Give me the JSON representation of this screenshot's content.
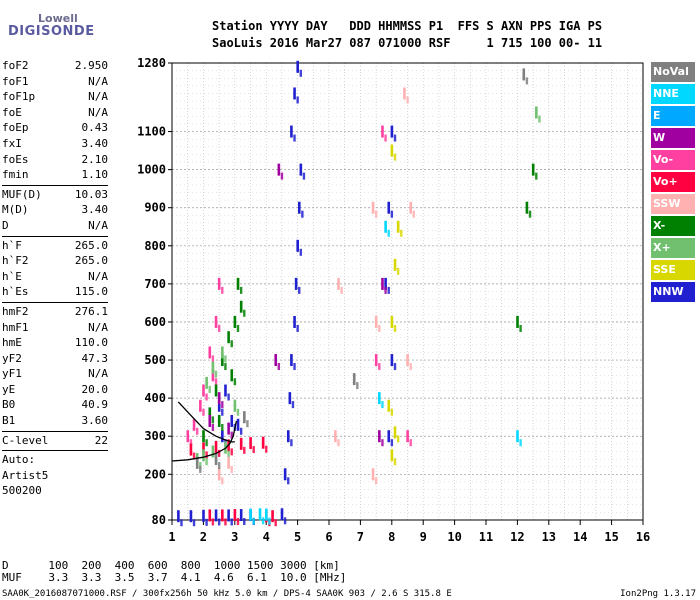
{
  "logo": {
    "line1": "Lowell",
    "line2": "DIGISONDE"
  },
  "header": {
    "line1": "Station YYYY DAY   DDD HHMMSS P1  FFS S AXN PPS IGA PS",
    "line2": "SaoLuis 2016 Mar27 087 071000 RSF     1 715 100 00- 11"
  },
  "params_groups": [
    [
      [
        "foF2",
        "2.950"
      ],
      [
        "foF1",
        "N/A"
      ],
      [
        "foF1p",
        "N/A"
      ],
      [
        "foE",
        "N/A"
      ],
      [
        "foEp",
        "0.43"
      ],
      [
        "fxI",
        "3.40"
      ],
      [
        "foEs",
        "2.10"
      ],
      [
        "fmin",
        "1.10"
      ]
    ],
    [
      [
        "MUF(D)",
        "10.03"
      ],
      [
        "M(D)",
        "3.40"
      ],
      [
        "D",
        "N/A"
      ]
    ],
    [
      [
        "h`F",
        "265.0"
      ],
      [
        "h`F2",
        "265.0"
      ],
      [
        "h`E",
        "N/A"
      ],
      [
        "h`Es",
        "115.0"
      ]
    ],
    [
      [
        "hmF2",
        "276.1"
      ],
      [
        "hmF1",
        "N/A"
      ],
      [
        "hmE",
        "110.0"
      ],
      [
        "yF2",
        "47.3"
      ],
      [
        "yF1",
        "N/A"
      ],
      [
        "yE",
        "20.0"
      ],
      [
        "B0",
        "40.9"
      ],
      [
        "B1",
        "3.60"
      ]
    ],
    [
      [
        "C-level",
        "22"
      ]
    ],
    [
      [
        "Auto:",
        ""
      ],
      [
        "Artist5",
        ""
      ],
      [
        "500200",
        ""
      ]
    ]
  ],
  "legend": [
    {
      "label": "NoVal",
      "color": "#808080"
    },
    {
      "label": "NNE",
      "color": "#00d8ff"
    },
    {
      "label": "E",
      "color": "#00a8ff"
    },
    {
      "label": "W",
      "color": "#a000a0"
    },
    {
      "label": "Vo-",
      "color": "#ff40a0"
    },
    {
      "label": "Vo+",
      "color": "#ff0040"
    },
    {
      "label": "SSW",
      "color": "#ffb0b0"
    },
    {
      "label": "X-",
      "color": "#008000"
    },
    {
      "label": "X+",
      "color": "#70c070"
    },
    {
      "label": "SSE",
      "color": "#d8d800"
    },
    {
      "label": "NNW",
      "color": "#2020d0"
    }
  ],
  "chart_data": {
    "type": "scatter",
    "title": "",
    "xlabel": "",
    "ylabel": "",
    "xlim": [
      1,
      16
    ],
    "ylim": [
      80,
      1280
    ],
    "x_ticks": [
      1,
      2,
      3,
      4,
      5,
      6,
      7,
      8,
      9,
      10,
      11,
      12,
      13,
      14,
      15,
      16
    ],
    "y_ticks": [
      80,
      200,
      300,
      400,
      500,
      600,
      700,
      800,
      900,
      1000,
      1100,
      1280
    ],
    "grid": true,
    "profile_curve": {
      "x": [
        1.0,
        1.5,
        2.0,
        2.4,
        2.7,
        2.85,
        2.95,
        3.0,
        3.05
      ],
      "y": [
        235,
        238,
        245,
        255,
        268,
        282,
        300,
        320,
        340
      ]
    },
    "trace_curve": {
      "x": [
        1.2,
        1.6,
        2.0,
        2.4,
        2.7,
        2.9,
        3.0
      ],
      "y": [
        390,
        355,
        320,
        300,
        290,
        285,
        285
      ]
    },
    "traces": [
      {
        "color": "#2020d0",
        "points": [
          [
            1.2,
            90
          ],
          [
            1.6,
            90
          ],
          [
            2.0,
            91
          ],
          [
            2.4,
            92
          ],
          [
            2.8,
            92
          ],
          [
            3.2,
            93
          ],
          [
            3.5,
            93
          ],
          [
            4.5,
            95
          ],
          [
            4.6,
            200
          ],
          [
            4.7,
            300
          ],
          [
            4.75,
            400
          ],
          [
            4.8,
            500
          ],
          [
            4.9,
            600
          ],
          [
            4.95,
            700
          ],
          [
            5.0,
            800
          ],
          [
            5.05,
            900
          ],
          [
            5.1,
            1000
          ],
          [
            4.8,
            1100
          ],
          [
            4.9,
            1200
          ],
          [
            5.0,
            1270
          ],
          [
            2.5,
            380
          ],
          [
            2.7,
            420
          ],
          [
            2.9,
            340
          ],
          [
            2.6,
            300
          ],
          [
            3.1,
            330
          ],
          [
            7.9,
            300
          ],
          [
            8.0,
            500
          ],
          [
            7.8,
            700
          ],
          [
            7.9,
            900
          ],
          [
            8.0,
            1100
          ]
        ]
      },
      {
        "color": "#ff40a0",
        "points": [
          [
            1.5,
            300
          ],
          [
            1.7,
            330
          ],
          [
            2.0,
            420
          ],
          [
            2.2,
            520
          ],
          [
            2.4,
            600
          ],
          [
            2.5,
            700
          ],
          [
            2.3,
            460
          ],
          [
            1.9,
            380
          ],
          [
            7.5,
            500
          ],
          [
            7.7,
            1100
          ],
          [
            8.5,
            300
          ]
        ]
      },
      {
        "color": "#ff0040",
        "points": [
          [
            1.6,
            265
          ],
          [
            2.0,
            268
          ],
          [
            2.4,
            272
          ],
          [
            2.8,
            276
          ],
          [
            3.2,
            280
          ],
          [
            3.5,
            282
          ],
          [
            3.9,
            283
          ],
          [
            2.2,
            92
          ],
          [
            2.6,
            92
          ],
          [
            3.0,
            93
          ],
          [
            4.0,
            90
          ],
          [
            4.2,
            90
          ]
        ]
      },
      {
        "color": "#008000",
        "points": [
          [
            2.0,
            300
          ],
          [
            2.2,
            360
          ],
          [
            2.4,
            420
          ],
          [
            2.6,
            500
          ],
          [
            2.8,
            560
          ],
          [
            3.0,
            600
          ],
          [
            3.1,
            700
          ],
          [
            3.2,
            640
          ],
          [
            2.9,
            460
          ],
          [
            2.5,
            340
          ],
          [
            12.0,
            600
          ],
          [
            12.3,
            900
          ],
          [
            12.5,
            1000
          ]
        ]
      },
      {
        "color": "#70c070",
        "points": [
          [
            1.8,
            240
          ],
          [
            2.0,
            250
          ],
          [
            2.3,
            260
          ],
          [
            2.7,
            270
          ],
          [
            2.1,
            440
          ],
          [
            2.3,
            480
          ],
          [
            2.6,
            520
          ],
          [
            3.0,
            380
          ],
          [
            12.6,
            1150
          ]
        ]
      },
      {
        "color": "#d8d800",
        "points": [
          [
            8.0,
            250
          ],
          [
            8.1,
            310
          ],
          [
            8.0,
            600
          ],
          [
            8.2,
            850
          ],
          [
            8.0,
            1050
          ],
          [
            7.9,
            380
          ],
          [
            8.1,
            750
          ]
        ]
      },
      {
        "color": "#ffb0b0",
        "points": [
          [
            7.4,
            200
          ],
          [
            7.5,
            600
          ],
          [
            7.4,
            900
          ],
          [
            8.5,
            500
          ],
          [
            8.6,
            900
          ],
          [
            8.4,
            1200
          ],
          [
            6.2,
            300
          ],
          [
            6.3,
            700
          ],
          [
            2.5,
            200
          ],
          [
            2.8,
            230
          ]
        ]
      },
      {
        "color": "#00d8ff",
        "points": [
          [
            3.5,
            94
          ],
          [
            3.8,
            95
          ],
          [
            4.0,
            94
          ],
          [
            7.6,
            400
          ],
          [
            7.8,
            850
          ],
          [
            12.0,
            300
          ]
        ]
      },
      {
        "color": "#a000a0",
        "points": [
          [
            2.2,
            340
          ],
          [
            2.5,
            400
          ],
          [
            2.8,
            320
          ],
          [
            4.3,
            500
          ],
          [
            4.4,
            1000
          ],
          [
            7.6,
            300
          ],
          [
            7.7,
            700
          ]
        ]
      },
      {
        "color": "#808080",
        "points": [
          [
            1.8,
            230
          ],
          [
            2.4,
            240
          ],
          [
            3.3,
            350
          ],
          [
            12.2,
            1250
          ],
          [
            6.8,
            450
          ]
        ]
      }
    ]
  },
  "table": {
    "row1": "D      100  200  400  600  800  1000 1500 3000 [km]",
    "row2": "MUF    3.3  3.3  3.5  3.7  4.1  4.6  6.1  10.0 [MHz]"
  },
  "footer": "SAA0K_2016087071000.RSF / 300fx256h 50 kHz 5.0 km / DPS-4 SAA0K 903 / 2.6 S 315.8 E",
  "version": "Ion2Png 1.3.17"
}
